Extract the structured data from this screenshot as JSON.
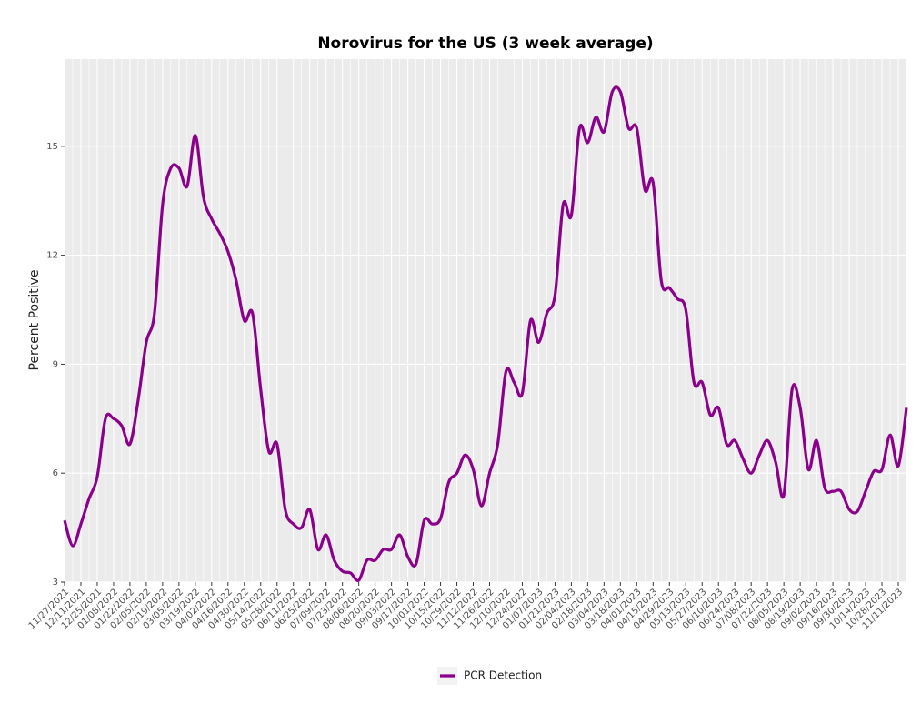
{
  "chart_data": {
    "type": "line",
    "title": "Norovirus for the US (3 week average)",
    "y_label": "Percent Positive",
    "categories": [
      "11/27/2021",
      null,
      "12/11/2021",
      null,
      "12/25/2021",
      null,
      "01/08/2022",
      null,
      "01/22/2022",
      null,
      "02/05/2022",
      null,
      "02/19/2022",
      null,
      "03/05/2022",
      null,
      "03/19/2022",
      null,
      "04/02/2022",
      null,
      "04/16/2022",
      null,
      "04/30/2022",
      null,
      "05/14/2022",
      null,
      "05/28/2022",
      null,
      "06/11/2022",
      null,
      "06/25/2022",
      null,
      "07/09/2022",
      null,
      "07/23/2022",
      null,
      "08/06/2022",
      null,
      "08/20/2022",
      null,
      "09/03/2022",
      null,
      "09/17/2022",
      null,
      "10/01/2022",
      null,
      "10/15/2022",
      null,
      "10/29/2022",
      null,
      "11/12/2022",
      null,
      "11/26/2022",
      null,
      "12/10/2022",
      null,
      "12/24/2022",
      null,
      "01/07/2023",
      null,
      "01/21/2023",
      null,
      "02/04/2023",
      null,
      "02/18/2023",
      null,
      "03/04/2023",
      null,
      "03/18/2023",
      null,
      "04/01/2023",
      null,
      "04/15/2023",
      null,
      "04/29/2023",
      null,
      "05/13/2023",
      null,
      "05/27/2023",
      null,
      "06/10/2023",
      null,
      "06/24/2023",
      null,
      "07/08/2023",
      null,
      "07/22/2023",
      null,
      "08/05/2023",
      null,
      "08/19/2023",
      null,
      "09/02/2023",
      null,
      "09/16/2023",
      null,
      "09/30/2023",
      null,
      "10/14/2023",
      null,
      "10/28/2023",
      null,
      "11/11/2023",
      null
    ],
    "series": [
      {
        "name": "PCR Detection",
        "color": "#8b008b",
        "values": [
          4.7,
          4.0,
          4.6,
          5.3,
          5.9,
          7.5,
          7.5,
          7.3,
          6.8,
          8.0,
          9.6,
          10.4,
          13.4,
          14.4,
          14.4,
          13.9,
          15.3,
          13.6,
          13.0,
          12.6,
          12.1,
          11.3,
          10.2,
          10.4,
          8.3,
          6.6,
          6.8,
          5.0,
          4.6,
          4.5,
          5.0,
          3.9,
          4.3,
          3.6,
          3.3,
          3.25,
          3.05,
          3.6,
          3.6,
          3.9,
          3.9,
          4.3,
          3.7,
          3.5,
          4.7,
          4.6,
          4.75,
          5.75,
          6.0,
          6.5,
          6.1,
          5.1,
          6.0,
          6.8,
          8.8,
          8.5,
          8.2,
          10.2,
          9.6,
          10.4,
          10.9,
          13.4,
          13.1,
          15.5,
          15.1,
          15.8,
          15.4,
          16.5,
          16.5,
          15.5,
          15.5,
          13.8,
          14.0,
          11.3,
          11.1,
          10.8,
          10.5,
          8.5,
          8.5,
          7.6,
          7.8,
          6.8,
          6.9,
          6.4,
          6.0,
          6.5,
          6.9,
          6.3,
          5.4,
          8.3,
          7.8,
          6.1,
          6.9,
          5.6,
          5.5,
          5.5,
          5.0,
          4.95,
          5.5,
          6.05,
          6.1,
          7.05,
          6.2,
          7.8
        ]
      }
    ],
    "ylim": [
      3,
      17.4
    ],
    "yticks": [
      3,
      6,
      9,
      12,
      15
    ],
    "grid": true,
    "legend": "bottom"
  }
}
